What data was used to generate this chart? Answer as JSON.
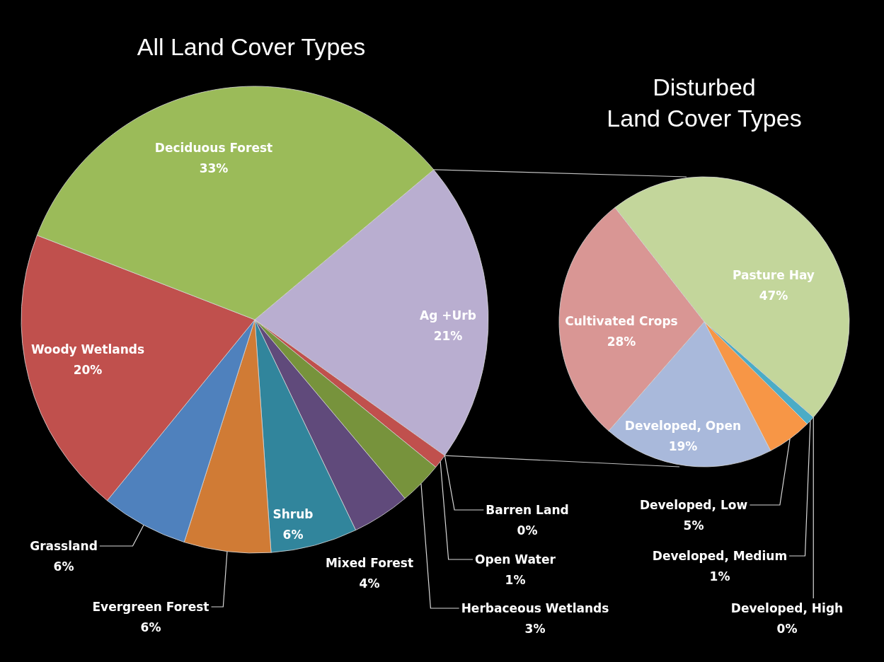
{
  "chart_data": [
    {
      "type": "pie",
      "title": "All Land Cover Types",
      "categories": [
        "Ag +Urb",
        "Barren Land",
        "Open Water",
        "Herbaceous Wetlands",
        "Mixed Forest",
        "Shrub",
        "Evergreen Forest",
        "Grassland",
        "Woody Wetlands",
        "Deciduous Forest"
      ],
      "values": [
        21,
        0,
        1,
        3,
        4,
        6,
        6,
        6,
        20,
        33
      ],
      "value_labels": [
        "21%",
        "0%",
        "1%",
        "3%",
        "4%",
        "6%",
        "6%",
        "6%",
        "20%",
        "33%"
      ],
      "colors": [
        "#b9aed0",
        null,
        "#c0504d",
        "#77933c",
        "#604a7b",
        "#31859c",
        "#d07b35",
        "#4f81bd",
        "#c0504d",
        "#9bbb59"
      ]
    },
    {
      "type": "pie",
      "title": "Disturbed\nLand Cover Types",
      "categories": [
        "Pasture Hay",
        "Developed, High",
        "Developed, Medium",
        "Developed, Low",
        "Developed, Open",
        "Cultivated Crops"
      ],
      "values": [
        47,
        0,
        1,
        5,
        19,
        28
      ],
      "value_labels": [
        "47%",
        "0%",
        "1%",
        "5%",
        "19%",
        "28%"
      ],
      "colors": [
        "#c3d69b",
        null,
        "#4bacc6",
        "#f79646",
        "#a9b9db",
        "#d99694"
      ]
    }
  ]
}
